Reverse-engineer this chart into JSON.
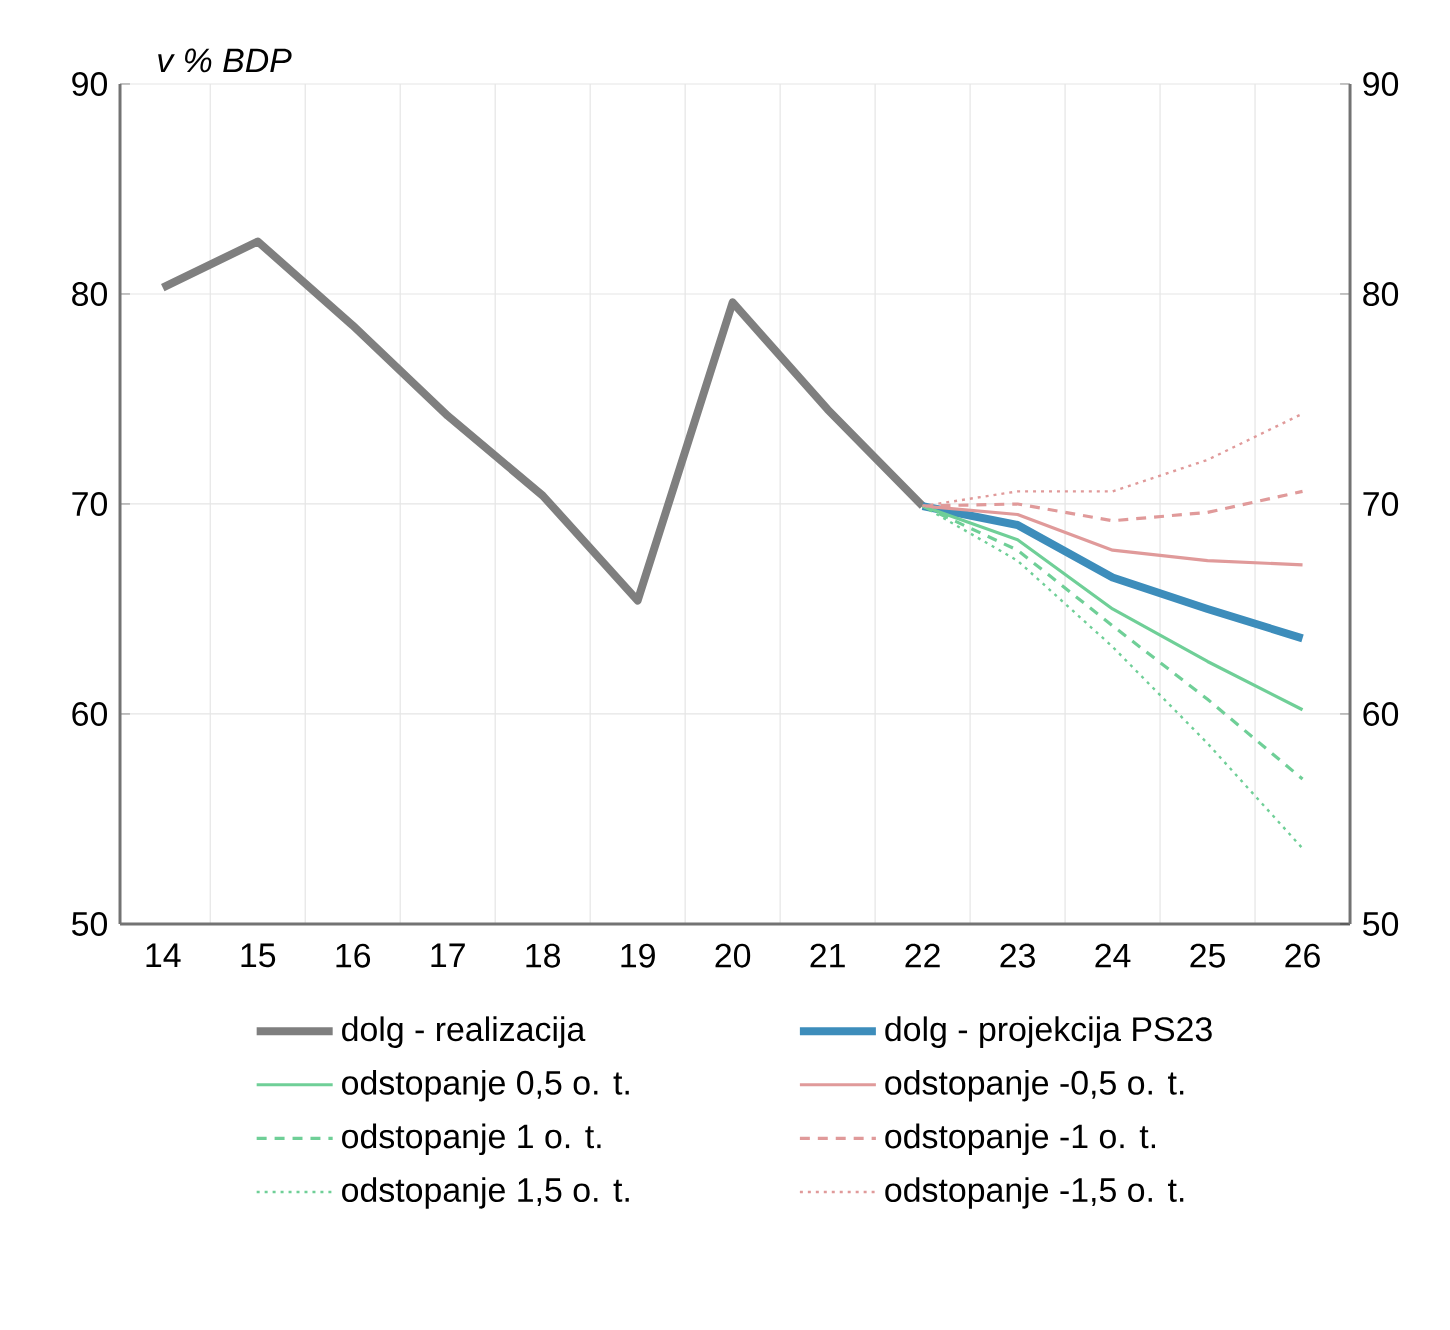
{
  "chart_data": {
    "type": "line",
    "ylabel": "v % BDP",
    "categories": [
      "14",
      "15",
      "16",
      "17",
      "18",
      "19",
      "20",
      "21",
      "22",
      "23",
      "24",
      "25",
      "26"
    ],
    "ylim": [
      50,
      90
    ],
    "yticks": [
      50,
      60,
      70,
      80,
      90
    ],
    "y2lim": [
      50,
      90
    ],
    "y2ticks": [
      50,
      60,
      70,
      80,
      90
    ],
    "grid": true,
    "legend": "bottom",
    "marker": "none",
    "series": [
      {
        "name": "dolg - realizacija",
        "color": "#7f7f7f",
        "line_style": "solid",
        "values": [
          80.3,
          82.5,
          78.5,
          74.2,
          70.4,
          65.4,
          79.6,
          74.5,
          69.9,
          null,
          null,
          null,
          null
        ]
      },
      {
        "name": "dolg - projekcija PS23",
        "color": "#3d8dbb",
        "line_style": "solid",
        "values": [
          null,
          null,
          null,
          null,
          null,
          null,
          null,
          null,
          69.9,
          69.0,
          66.5,
          65.0,
          63.6
        ]
      },
      {
        "name": "odstopanje 0,5 o. t.",
        "color": "#6fcf97",
        "line_style": "solid",
        "values": [
          null,
          null,
          null,
          null,
          null,
          null,
          null,
          null,
          69.9,
          68.3,
          65.0,
          62.5,
          60.2
        ]
      },
      {
        "name": "odstopanje -0,5 o. t.",
        "color": "#e09a9a",
        "line_style": "solid",
        "values": [
          null,
          null,
          null,
          null,
          null,
          null,
          null,
          null,
          69.9,
          69.5,
          67.8,
          67.3,
          67.1
        ]
      },
      {
        "name": "odstopanje 1 o. t.",
        "color": "#6fcf97",
        "line_style": "dashed",
        "values": [
          null,
          null,
          null,
          null,
          null,
          null,
          null,
          null,
          69.9,
          67.8,
          64.2,
          60.7,
          56.9
        ]
      },
      {
        "name": "odstopanje -1 o. t.",
        "color": "#e09a9a",
        "line_style": "dashed",
        "values": [
          null,
          null,
          null,
          null,
          null,
          null,
          null,
          null,
          69.9,
          70.0,
          69.2,
          69.6,
          70.6
        ]
      },
      {
        "name": "odstopanje 1,5 o. t.",
        "color": "#6fcf97",
        "line_style": "dotted",
        "values": [
          null,
          null,
          null,
          null,
          null,
          null,
          null,
          null,
          69.9,
          67.3,
          63.2,
          58.6,
          53.6
        ]
      },
      {
        "name": "odstopanje -1,5 o. t.",
        "color": "#e09a9a",
        "line_style": "dotted",
        "values": [
          null,
          null,
          null,
          null,
          null,
          null,
          null,
          null,
          69.9,
          70.6,
          70.6,
          72.1,
          74.3
        ]
      }
    ]
  }
}
